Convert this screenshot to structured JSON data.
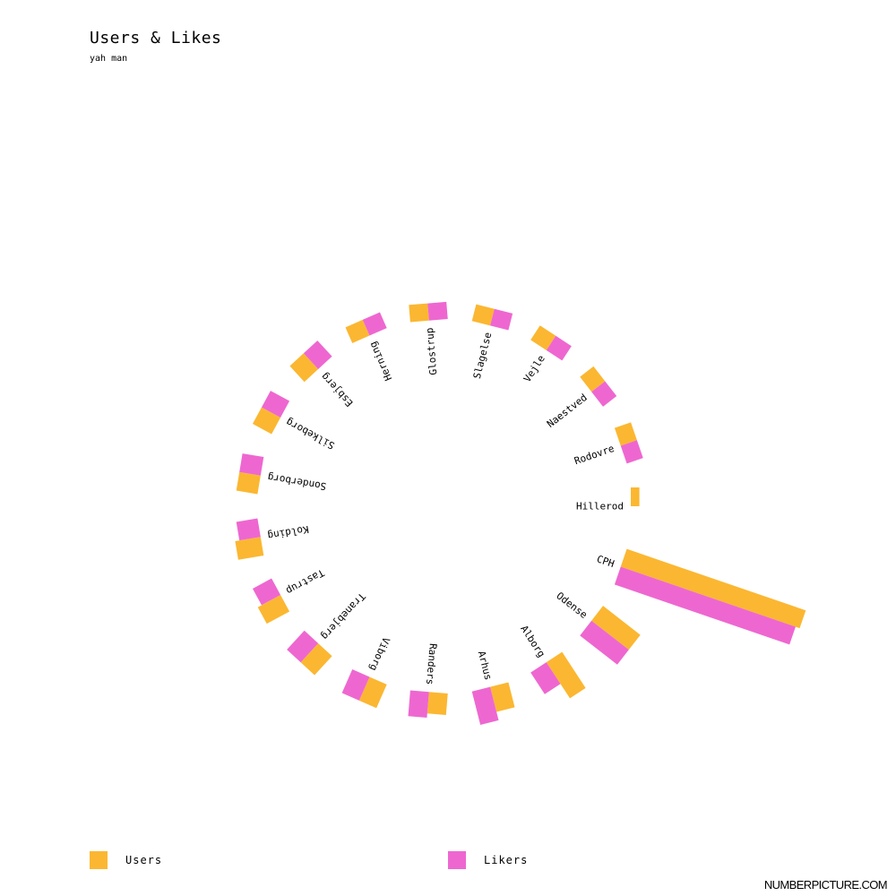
{
  "title": "Users & Likes",
  "subtitle": "yah man",
  "legend": [
    {
      "label": "Users",
      "color": "#fbb731"
    },
    {
      "label": "Likers",
      "color": "#ee67d0"
    }
  ],
  "credit": "NUMBERPICTURE.COM",
  "chart_data": {
    "type": "bar",
    "layout": "radial",
    "categories": [
      "Hillerod",
      "CPH",
      "Odense",
      "Alborg",
      "Arhus",
      "Randers",
      "Viborg",
      "Tranebjerg",
      "Tastrup",
      "Kolding",
      "Sonderborg",
      "Silkeborg",
      "Esbjerg",
      "Herning",
      "Glostrup",
      "Slagelse",
      "Vejle",
      "Naestved",
      "Rodovre"
    ],
    "series": [
      {
        "name": "Users",
        "values": [
          2,
          44,
          11,
          10,
          6,
          5,
          6,
          6,
          6,
          6,
          5,
          5,
          5,
          4,
          4,
          4,
          4,
          4,
          4
        ],
        "color": "#fbb731"
      },
      {
        "name": "Likers",
        "values": [
          0,
          43,
          11,
          6,
          8,
          6,
          6,
          6,
          5,
          5,
          5,
          5,
          5,
          4,
          4,
          4,
          4,
          4,
          4
        ],
        "color": "#ee67d0"
      }
    ]
  }
}
